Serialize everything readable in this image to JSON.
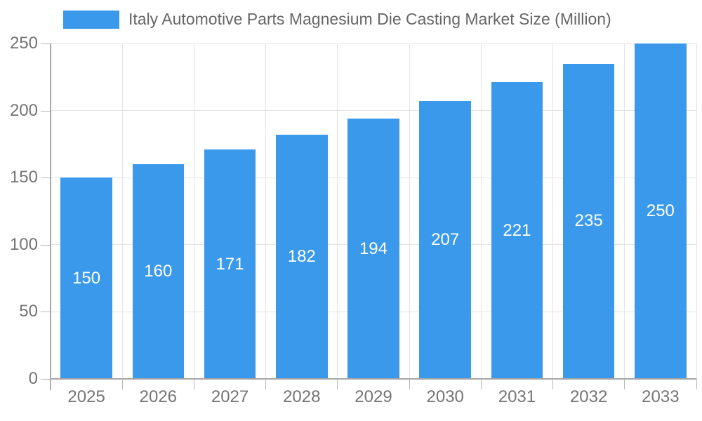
{
  "legend": {
    "label": "Italy Automotive Parts Magnesium Die Casting Market Size (Million)"
  },
  "chart_data": {
    "type": "bar",
    "title": "Italy Automotive Parts Magnesium Die Casting Market Size (Million)",
    "categories": [
      "2025",
      "2026",
      "2027",
      "2028",
      "2029",
      "2030",
      "2031",
      "2032",
      "2033"
    ],
    "values": [
      150,
      160,
      171,
      182,
      194,
      207,
      221,
      235,
      250
    ],
    "xlabel": "",
    "ylabel": "",
    "ylim": [
      0,
      250
    ],
    "yticks": [
      0,
      50,
      100,
      150,
      200,
      250
    ],
    "grid": "full",
    "legend_position": "top-left",
    "bar_color": "#3B99EC",
    "value_label_color": "#ffffff",
    "colors": {
      "background": "#ffffff",
      "grid": "#e4e4e4",
      "axis": "#a6a6a6",
      "tick": "#b8b8b8",
      "tick_label": "#757575",
      "legend_text": "#666666"
    }
  }
}
